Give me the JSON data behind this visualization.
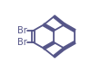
{
  "background_color": "#ffffff",
  "line_color": "#5555888",
  "bond_color": "#555588",
  "br_color": "#555588",
  "line_width": 1.3,
  "font_size": 7.0,
  "figsize": [
    1.0,
    0.81
  ],
  "dpi": 100
}
